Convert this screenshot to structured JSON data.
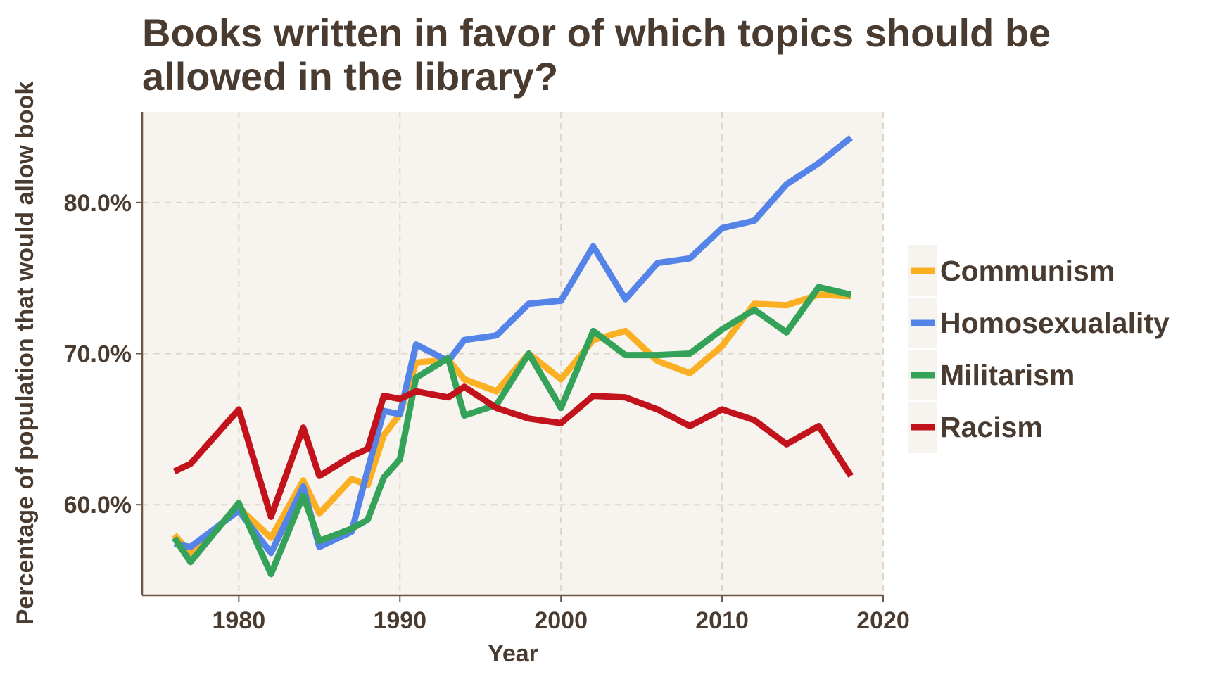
{
  "chart_data": {
    "type": "line",
    "title": "Books written in favor of which topics should be allowed in the library?",
    "title_lines": [
      "Books written in favor of which topics should be",
      "allowed in the library?"
    ],
    "xlabel": "Year",
    "ylabel": "Percentage of population that would allow book",
    "xlim": [
      1974,
      2020
    ],
    "ylim": [
      54,
      86
    ],
    "x_ticks": [
      1980,
      1990,
      2000,
      2010,
      2020
    ],
    "x_tick_labels": [
      "1980",
      "1990",
      "2000",
      "2010",
      "2020"
    ],
    "y_ticks": [
      60,
      70,
      80
    ],
    "y_tick_labels": [
      "60.0%",
      "70.0%",
      "80.0%"
    ],
    "grid": true,
    "legend_position": "right",
    "colors": {
      "panel_background": "#f7f4ef",
      "grid": "#ddd5c5",
      "axis": "#6b5646",
      "text": "#4a3b30"
    },
    "series": [
      {
        "name": "Communism",
        "color": "#fbb024",
        "points": [
          [
            1976,
            58.0
          ],
          [
            1977,
            56.8
          ],
          [
            1980,
            59.8
          ],
          [
            1982,
            57.8
          ],
          [
            1984,
            61.6
          ],
          [
            1985,
            59.4
          ],
          [
            1987,
            61.7
          ],
          [
            1988,
            61.3
          ],
          [
            1989,
            64.6
          ],
          [
            1990,
            66.0
          ],
          [
            1991,
            69.4
          ],
          [
            1993,
            69.6
          ],
          [
            1994,
            68.3
          ],
          [
            1996,
            67.5
          ],
          [
            1998,
            70.0
          ],
          [
            2000,
            68.3
          ],
          [
            2002,
            70.9
          ],
          [
            2004,
            71.5
          ],
          [
            2006,
            69.5
          ],
          [
            2008,
            68.7
          ],
          [
            2010,
            70.5
          ],
          [
            2012,
            73.3
          ],
          [
            2014,
            73.2
          ],
          [
            2016,
            73.9
          ],
          [
            2018,
            73.8
          ]
        ]
      },
      {
        "name": "Homosexualality",
        "color": "#5584e8",
        "points": [
          [
            1976,
            57.4
          ],
          [
            1977,
            57.2
          ],
          [
            1980,
            59.6
          ],
          [
            1982,
            56.8
          ],
          [
            1984,
            61.2
          ],
          [
            1985,
            57.2
          ],
          [
            1987,
            58.2
          ],
          [
            1988,
            62.3
          ],
          [
            1989,
            66.2
          ],
          [
            1990,
            66.0
          ],
          [
            1991,
            70.6
          ],
          [
            1993,
            69.5
          ],
          [
            1994,
            70.9
          ],
          [
            1996,
            71.2
          ],
          [
            1998,
            73.3
          ],
          [
            2000,
            73.5
          ],
          [
            2002,
            77.1
          ],
          [
            2004,
            73.6
          ],
          [
            2006,
            76.0
          ],
          [
            2008,
            76.3
          ],
          [
            2010,
            78.3
          ],
          [
            2012,
            78.8
          ],
          [
            2014,
            81.2
          ],
          [
            2016,
            82.6
          ],
          [
            2018,
            84.3
          ]
        ]
      },
      {
        "name": "Militarism",
        "color": "#35a25a",
        "points": [
          [
            1976,
            57.8
          ],
          [
            1977,
            56.2
          ],
          [
            1980,
            60.1
          ],
          [
            1982,
            55.4
          ],
          [
            1984,
            60.6
          ],
          [
            1985,
            57.6
          ],
          [
            1987,
            58.4
          ],
          [
            1988,
            59.0
          ],
          [
            1989,
            61.8
          ],
          [
            1990,
            63.0
          ],
          [
            1991,
            68.4
          ],
          [
            1993,
            69.7
          ],
          [
            1994,
            65.9
          ],
          [
            1996,
            66.6
          ],
          [
            1998,
            70.0
          ],
          [
            2000,
            66.4
          ],
          [
            2002,
            71.5
          ],
          [
            2004,
            69.9
          ],
          [
            2006,
            69.9
          ],
          [
            2008,
            70.0
          ],
          [
            2010,
            71.6
          ],
          [
            2012,
            72.9
          ],
          [
            2014,
            71.4
          ],
          [
            2016,
            74.4
          ],
          [
            2018,
            73.9
          ]
        ]
      },
      {
        "name": "Racism",
        "color": "#c2121c",
        "points": [
          [
            1976,
            62.2
          ],
          [
            1977,
            62.7
          ],
          [
            1980,
            66.3
          ],
          [
            1982,
            59.2
          ],
          [
            1984,
            65.1
          ],
          [
            1985,
            61.9
          ],
          [
            1987,
            63.2
          ],
          [
            1988,
            63.7
          ],
          [
            1989,
            67.2
          ],
          [
            1990,
            67.0
          ],
          [
            1991,
            67.5
          ],
          [
            1993,
            67.1
          ],
          [
            1994,
            67.8
          ],
          [
            1996,
            66.4
          ],
          [
            1998,
            65.7
          ],
          [
            2000,
            65.4
          ],
          [
            2002,
            67.2
          ],
          [
            2004,
            67.1
          ],
          [
            2006,
            66.3
          ],
          [
            2008,
            65.2
          ],
          [
            2010,
            66.3
          ],
          [
            2012,
            65.6
          ],
          [
            2014,
            64.0
          ],
          [
            2016,
            65.2
          ],
          [
            2018,
            61.9
          ]
        ]
      }
    ]
  }
}
